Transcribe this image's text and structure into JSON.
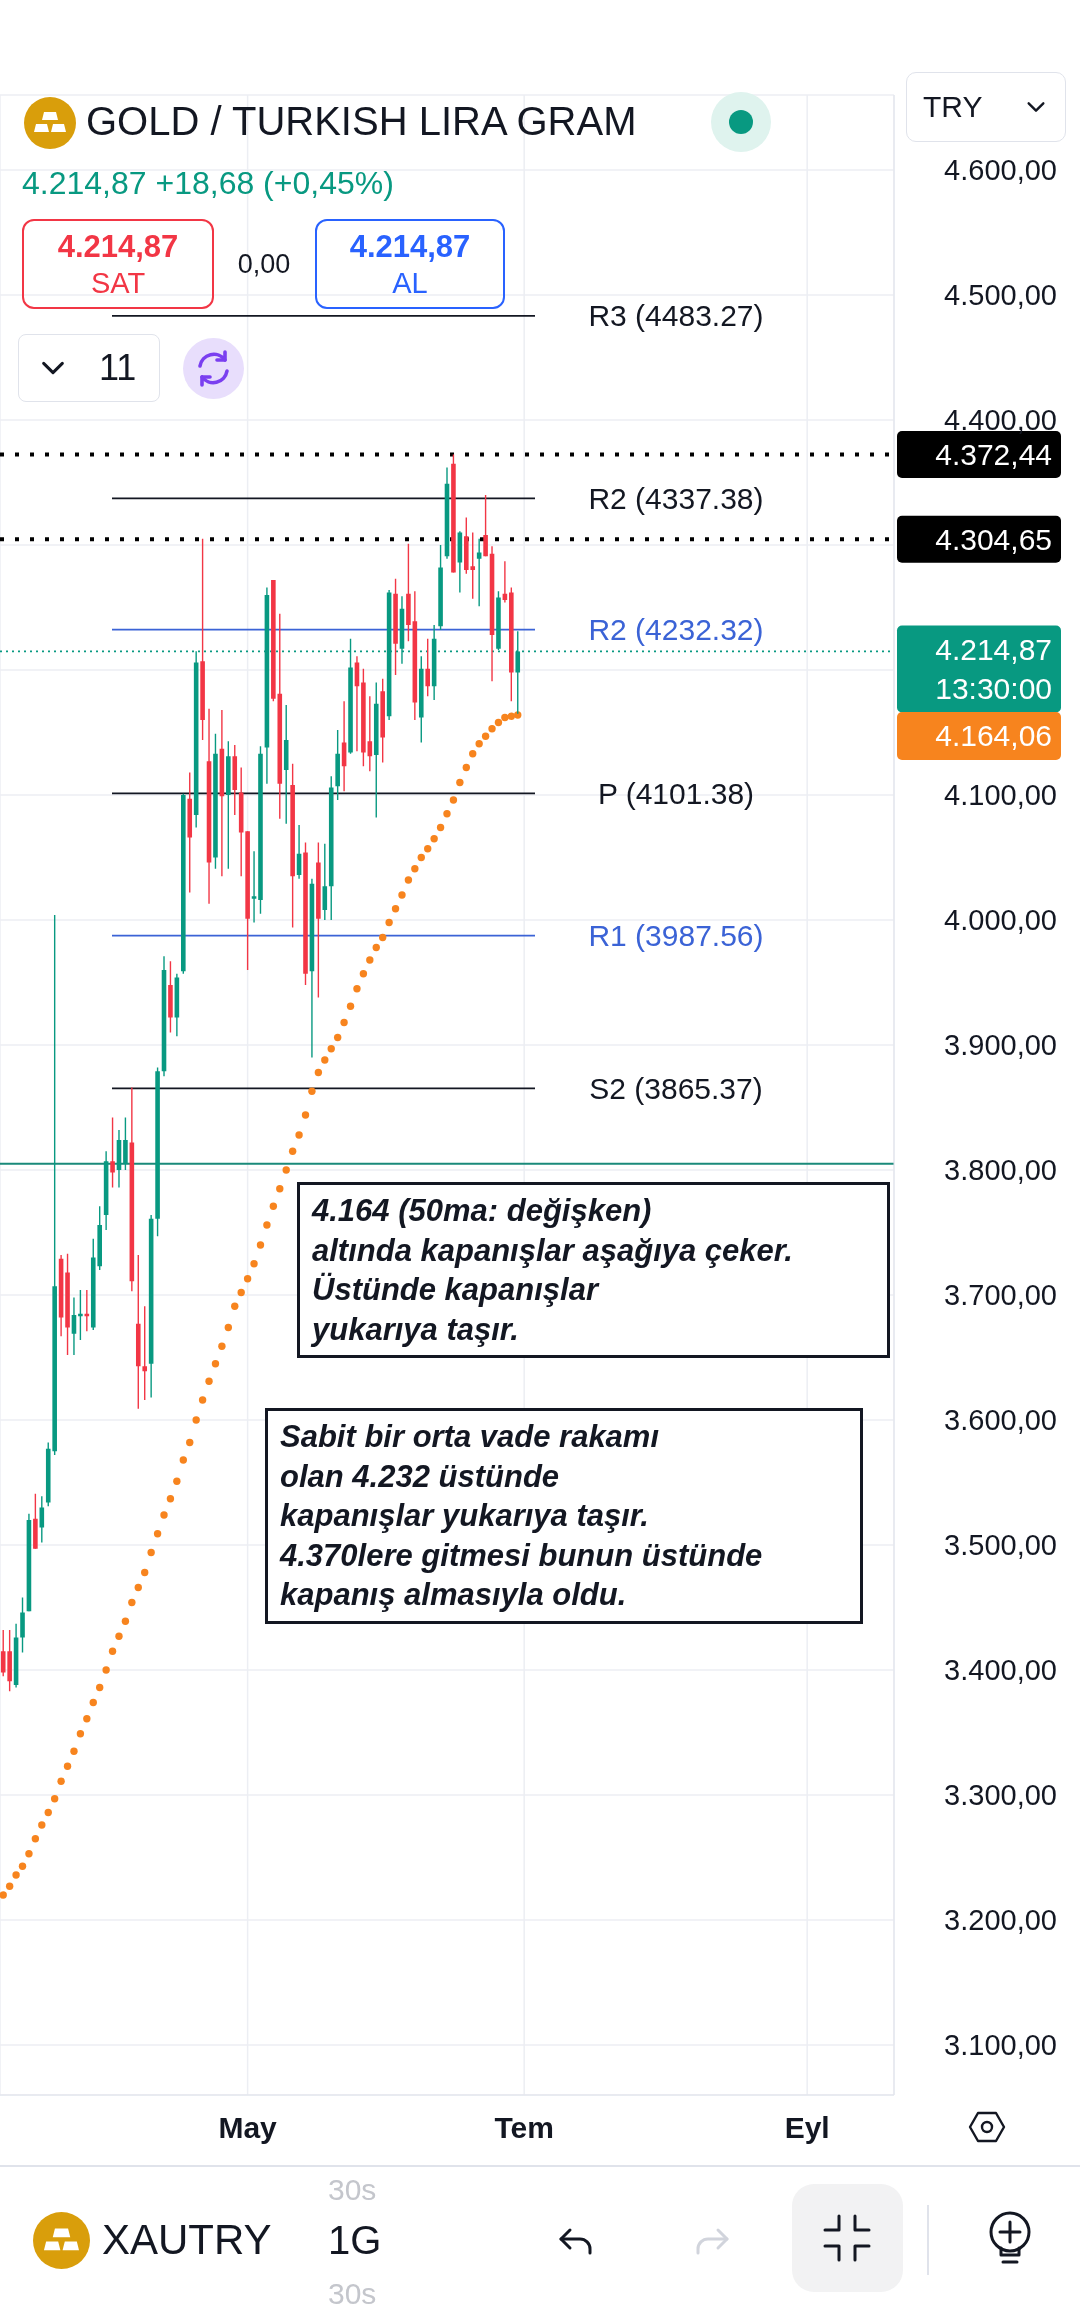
{
  "chart_data": {
    "type": "candlestick",
    "title": "GOLD / TURKISH LIRA GRAM",
    "subtitle": "4.214,87 +18,68 (+0,45%)",
    "categories": [
      null,
      null,
      null,
      null,
      null,
      null,
      null,
      null,
      null,
      null,
      null,
      null,
      null,
      null,
      null,
      null,
      null,
      null,
      null,
      null,
      null,
      null,
      null,
      null,
      null,
      null,
      null,
      null,
      null,
      null,
      null,
      null,
      null,
      null,
      null,
      null,
      null,
      null,
      "May",
      null,
      null,
      null,
      null,
      null,
      null,
      null,
      null,
      null,
      null,
      null,
      null,
      null,
      null,
      null,
      null,
      null,
      null,
      null,
      null,
      null,
      null,
      null,
      null,
      null,
      null,
      null,
      null,
      null,
      null,
      null,
      null,
      null,
      null,
      null,
      null,
      null,
      null,
      null,
      null,
      null,
      null,
      "Tem",
      null,
      null,
      null,
      null,
      null,
      null,
      null,
      null,
      null,
      null,
      null,
      null,
      null,
      null,
      null,
      null,
      null,
      null,
      null,
      null,
      null,
      null,
      null,
      null,
      null,
      null,
      null,
      null,
      null,
      null,
      null,
      null,
      null,
      null,
      null,
      null,
      null,
      null,
      null,
      null,
      null,
      null,
      null,
      "Eyl",
      null,
      null,
      null,
      null,
      null,
      null,
      null,
      null,
      null,
      null,
      null,
      null,
      null
    ],
    "ohlc": [
      [
        3415,
        3432,
        3395,
        3398
      ],
      [
        3415,
        3432,
        3383,
        3391
      ],
      [
        3388,
        3437,
        3386,
        3426
      ],
      [
        3426,
        3458,
        3414,
        3446
      ],
      [
        3447,
        3525,
        3447,
        3520
      ],
      [
        3521,
        3541,
        3497,
        3497
      ],
      [
        3514,
        3539,
        3502,
        3530
      ],
      [
        3534,
        3582,
        3531,
        3577
      ],
      [
        3575,
        4004,
        3572,
        3707
      ],
      [
        3729,
        3732,
        3667,
        3682
      ],
      [
        3718,
        3733,
        3652,
        3674
      ],
      [
        3669,
        3698,
        3652,
        3684
      ],
      [
        3683,
        3704,
        3664,
        3685
      ],
      [
        3685,
        3704,
        3671,
        3683
      ],
      [
        3674,
        3745,
        3672,
        3730
      ],
      [
        3723,
        3771,
        3720,
        3756
      ],
      [
        3764,
        3815,
        3752,
        3807
      ],
      [
        3807,
        3842,
        3786,
        3798
      ],
      [
        3800,
        3832,
        3786,
        3824
      ],
      [
        3805,
        3842,
        3800,
        3824
      ],
      [
        3822,
        3866,
        3703,
        3711
      ],
      [
        3677,
        3732,
        3609,
        3643
      ],
      [
        3643,
        3691,
        3616,
        3639
      ],
      [
        3645,
        3764,
        3618,
        3761
      ],
      [
        3761,
        3882,
        3747,
        3879
      ],
      [
        3879,
        3971,
        3875,
        3960
      ],
      [
        3948,
        3967,
        3910,
        3922
      ],
      [
        3922,
        3957,
        3907,
        3954
      ],
      [
        3959,
        4101,
        3957,
        4100
      ],
      [
        4097,
        4118,
        4022,
        4066
      ],
      [
        4084,
        4215,
        4074,
        4206
      ],
      [
        4207,
        4305,
        4144,
        4160
      ],
      [
        4127,
        4169,
        4013,
        4046
      ],
      [
        4050,
        4149,
        4041,
        4133
      ],
      [
        4137,
        4168,
        4035,
        4099
      ],
      [
        4100,
        4143,
        4041,
        4131
      ],
      [
        4131,
        4140,
        4084,
        4104
      ],
      [
        4102,
        4122,
        4035,
        4070
      ],
      [
        4071,
        4071,
        3960,
        4001
      ],
      [
        4017,
        4055,
        3998,
        4019
      ],
      [
        4016,
        4139,
        4005,
        4133
      ],
      [
        4138,
        4266,
        4109,
        4260
      ],
      [
        4272,
        4272,
        4175,
        4177
      ],
      [
        4181,
        4245,
        4081,
        4109
      ],
      [
        4120,
        4172,
        4077,
        4144
      ],
      [
        4108,
        4125,
        3994,
        4035
      ],
      [
        4036,
        4076,
        4033,
        4053
      ],
      [
        4054,
        4062,
        3948,
        3957
      ],
      [
        3959,
        4033,
        3890,
        4029
      ],
      [
        4046,
        4062,
        3938,
        4001
      ],
      [
        4008,
        4061,
        4000,
        4027
      ],
      [
        4027,
        4115,
        4000,
        4106
      ],
      [
        4107,
        4152,
        4096,
        4133
      ],
      [
        4142,
        4175,
        4103,
        4123
      ],
      [
        4134,
        4225,
        4133,
        4202
      ],
      [
        4206,
        4211,
        4135,
        4187
      ],
      [
        4190,
        4201,
        4123,
        4134
      ],
      [
        4143,
        4179,
        4119,
        4131
      ],
      [
        4132,
        4190,
        4082,
        4173
      ],
      [
        4183,
        4193,
        4126,
        4146
      ],
      [
        4163,
        4264,
        4160,
        4262
      ],
      [
        4261,
        4273,
        4196,
        4221
      ],
      [
        4217,
        4259,
        4205,
        4249
      ],
      [
        4261,
        4301,
        4223,
        4236
      ],
      [
        4239,
        4263,
        4160,
        4174
      ],
      [
        4162,
        4211,
        4142,
        4201
      ],
      [
        4201,
        4225,
        4179,
        4187
      ],
      [
        4187,
        4236,
        4176,
        4225
      ],
      [
        4235,
        4300,
        4232,
        4282
      ],
      [
        4291,
        4362,
        4289,
        4349
      ],
      [
        4365,
        4372.44,
        4278,
        4278
      ],
      [
        4286,
        4311,
        4262,
        4310
      ],
      [
        4307,
        4322,
        4277,
        4280
      ],
      [
        4283,
        4310,
        4257,
        4280
      ],
      [
        4289,
        4305,
        4251,
        4294
      ],
      [
        4308,
        4340,
        4291,
        4291
      ],
      [
        4293,
        4299,
        4191,
        4228
      ],
      [
        4217,
        4263,
        4216,
        4258
      ],
      [
        4261,
        4287,
        4254,
        4256
      ],
      [
        4262,
        4266,
        4175,
        4198
      ],
      [
        4198,
        4231,
        4165,
        4214.87
      ],
      null,
      null,
      null,
      null,
      null,
      null,
      null,
      null,
      null,
      null,
      null,
      null,
      null,
      null,
      null,
      null,
      null,
      null,
      null,
      null,
      null,
      null,
      null,
      null,
      null,
      null,
      null,
      null,
      null,
      null,
      null,
      null,
      null,
      null,
      null,
      null,
      null,
      null,
      null,
      null,
      null,
      null,
      null,
      null,
      null,
      null,
      null,
      null,
      null,
      null,
      null,
      null,
      null,
      null,
      null,
      null,
      null,
      null
    ],
    "colors": [
      "#f23645",
      "#f23645",
      "#089981",
      "#089981",
      "#089981",
      "#f23645",
      "#089981",
      "#089981",
      "#089981",
      "#f23645",
      "#f23645",
      "#089981",
      "#089981",
      "#f23645",
      "#089981",
      "#089981",
      "#089981",
      "#f23645",
      "#089981",
      "#089981",
      "#f23645",
      "#f23645",
      "#f23645",
      "#089981",
      "#089981",
      "#089981",
      "#f23645",
      "#089981",
      "#089981",
      "#f23645",
      "#089981",
      "#f23645",
      "#f23645",
      "#089981",
      "#f23645",
      "#089981",
      "#f23645",
      "#f23645",
      "#f23645",
      "#089981",
      "#089981",
      "#089981",
      "#f23645",
      "#f23645",
      "#089981",
      "#f23645",
      "#089981",
      "#f23645",
      "#089981",
      "#f23645",
      "#089981",
      "#089981",
      "#089981",
      "#f23645",
      "#089981",
      "#f23645",
      "#f23645",
      "#f23645",
      "#089981",
      "#f23645",
      "#089981",
      "#f23645",
      "#089981",
      "#f23645",
      "#f23645",
      "#089981",
      "#f23645",
      "#089981",
      "#089981",
      "#089981",
      "#f23645",
      "#089981",
      "#f23645",
      "#f23645",
      "#089981",
      "#f23645",
      "#f23645",
      "#089981",
      "#f23645",
      "#f23645",
      "#089981",
      null,
      null,
      null,
      null,
      null,
      null,
      null,
      null,
      null,
      null,
      null,
      null,
      null,
      null,
      null,
      null,
      null,
      null,
      null,
      null,
      null,
      null,
      null,
      null,
      null,
      null,
      null,
      null,
      null,
      null,
      null,
      null,
      null,
      null,
      null,
      null,
      null,
      null,
      null,
      null,
      null,
      null,
      null,
      null,
      null,
      null,
      null,
      null,
      null,
      null,
      null,
      null,
      null,
      null,
      null,
      null,
      null,
      null
    ],
    "series": [
      {
        "type": "scatter",
        "marker": "circle",
        "color": "#f7841e",
        "values": [
          3220,
          3227,
          3236,
          3243,
          3253,
          3265,
          3276,
          3286,
          3297,
          3311,
          3323,
          3335,
          3349,
          3361,
          3374,
          3386,
          3400,
          3415,
          3427,
          3439,
          3454,
          3466,
          3478,
          3494,
          3509,
          3524,
          3537,
          3551,
          3568,
          3582,
          3600,
          3616,
          3631,
          3645,
          3659,
          3674,
          3691,
          3702,
          3713,
          3725,
          3740,
          3756,
          3771,
          3785,
          3800,
          3815,
          3828,
          3844,
          3863,
          3878,
          3888,
          3897,
          3906,
          3918,
          3931,
          3945,
          3957,
          3968,
          3978,
          3986,
          3998,
          4009,
          4020,
          4032,
          4041,
          4050,
          4057,
          4065,
          4074,
          4085,
          4096,
          4110,
          4122,
          4133,
          4141,
          4147,
          4153,
          4158,
          4162,
          4163,
          4164,
          null,
          null,
          null,
          null,
          null,
          null,
          null,
          null,
          null,
          null,
          null,
          null,
          null,
          null,
          null,
          null,
          null,
          null,
          null,
          null,
          null,
          null,
          null,
          null,
          null,
          null,
          null,
          null,
          null,
          null,
          null,
          null,
          null,
          null,
          null,
          null,
          null,
          null,
          null,
          null,
          null,
          null,
          null,
          null,
          null,
          null,
          null,
          null,
          null,
          null,
          null,
          null,
          null,
          null,
          null,
          null,
          null,
          null
        ]
      }
    ],
    "ylim": [
      3060,
      4660
    ],
    "yticks": [
      {
        "value": 3100,
        "label": "3.100,00"
      },
      {
        "value": 3200,
        "label": "3.200,00"
      },
      {
        "value": 3300,
        "label": "3.300,00"
      },
      {
        "value": 3400,
        "label": "3.400,00"
      },
      {
        "value": 3500,
        "label": "3.500,00"
      },
      {
        "value": 3600,
        "label": "3.600,00"
      },
      {
        "value": 3700,
        "label": "3.700,00"
      },
      {
        "value": 3800,
        "label": "3.800,00"
      },
      {
        "value": 3900,
        "label": "3.900,00"
      },
      {
        "value": 4000,
        "label": "4.000,00"
      },
      {
        "value": 4100,
        "label": "4.100,00"
      },
      {
        "value": 4200,
        "label": null
      },
      {
        "value": 4300,
        "label": null
      },
      {
        "value": 4400,
        "label": "4.400,00"
      },
      {
        "value": 4500,
        "label": "4.500,00"
      },
      {
        "value": 4600,
        "label": "4.600,00"
      }
    ],
    "grid": true,
    "ref_lines": [
      {
        "axis": "y",
        "value": 4483.27,
        "label": "R3 (4483.27)",
        "color": "#131722",
        "line_style": "solid"
      },
      {
        "axis": "y",
        "value": 4337.38,
        "label": "R2 (4337.38)",
        "color": "#131722",
        "line_style": "solid"
      },
      {
        "axis": "y",
        "value": 4232.32,
        "label": "R2 (4232.32)",
        "color": "#3b63d6",
        "line_style": "solid"
      },
      {
        "axis": "y",
        "value": 4101.38,
        "label": "P (4101.38)",
        "color": "#131722",
        "line_style": "solid"
      },
      {
        "axis": "y",
        "value": 3987.56,
        "label": "R1 (3987.56)",
        "color": "#3b63d6",
        "line_style": "solid"
      },
      {
        "axis": "y",
        "value": 3865.37,
        "label": "S2 (3865.37)",
        "color": "#131722",
        "line_style": "solid"
      },
      {
        "axis": "y",
        "value": 4372.44,
        "label": "4.372,44",
        "color": "#000000",
        "line_style": "dotted"
      },
      {
        "axis": "y",
        "value": 4304.65,
        "label": "4.304,65",
        "color": "#000000",
        "line_style": "dotted"
      },
      {
        "axis": "y",
        "value": 4214.87,
        "label": "4.214,87",
        "color": "#089981",
        "line_style": "dotted"
      },
      {
        "axis": "y",
        "value": 3805,
        "color": "#1a8a7a",
        "line_style": "solid"
      }
    ],
    "annotations": [
      "4.164 (50ma: değişken)\naltında kapanışlar aşağıya çeker.\nÜstünde kapanışlar\nyukarıya taşır.",
      "Sabit bir orta vade rakamı\nolan 4.232 üstünde\nkapanışlar yukarıya taşır.\n4.370lere gitmesi bunun üstünde\nkapanış almasıyla oldu.",
      "13:30:00",
      "4.164,06",
      "TRY",
      "4.214,87",
      "SAT",
      "0,00",
      "4.214,87",
      "AL",
      "11",
      "XAUTRY",
      "1G",
      "30s",
      "30s"
    ]
  }
}
